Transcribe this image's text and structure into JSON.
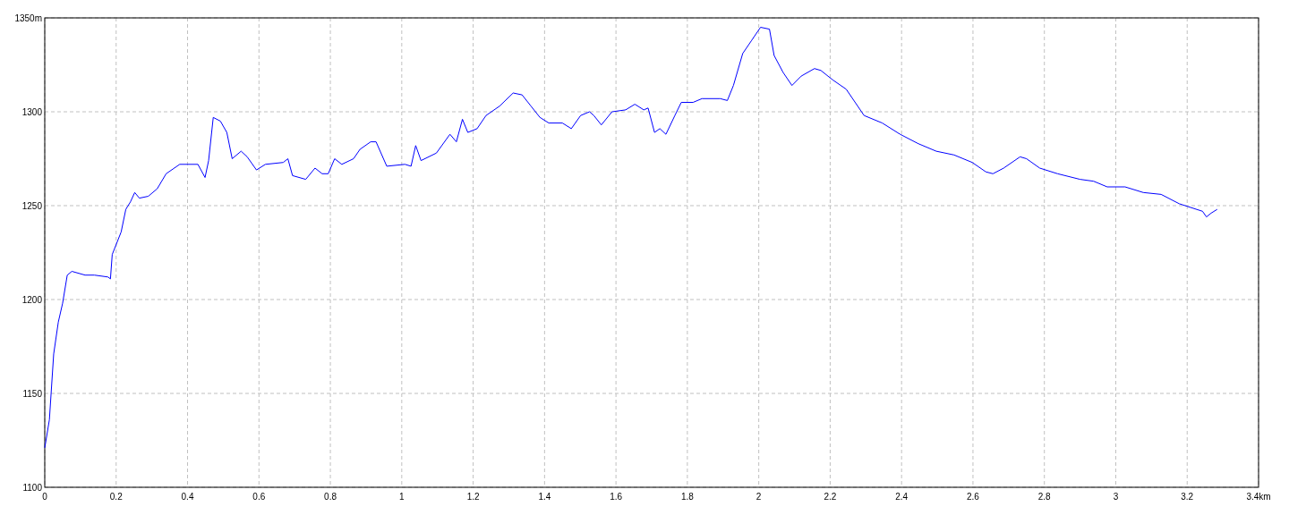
{
  "chart_data": {
    "type": "line",
    "x": [
      0,
      0.013,
      0.025,
      0.038,
      0.05,
      0.063,
      0.076,
      0.113,
      0.139,
      0.177,
      0.184,
      0.189,
      0.214,
      0.227,
      0.24,
      0.252,
      0.265,
      0.29,
      0.315,
      0.34,
      0.378,
      0.429,
      0.449,
      0.459,
      0.472,
      0.492,
      0.51,
      0.525,
      0.55,
      0.567,
      0.593,
      0.618,
      0.668,
      0.681,
      0.694,
      0.731,
      0.757,
      0.777,
      0.794,
      0.812,
      0.832,
      0.865,
      0.883,
      0.913,
      0.928,
      0.958,
      1.009,
      1.026,
      1.039,
      1.054,
      1.097,
      1.135,
      1.153,
      1.17,
      1.185,
      1.211,
      1.236,
      1.274,
      1.312,
      1.337,
      1.362,
      1.387,
      1.412,
      1.45,
      1.475,
      1.501,
      1.526,
      1.538,
      1.559,
      1.589,
      1.627,
      1.653,
      1.678,
      1.69,
      1.708,
      1.723,
      1.74,
      1.765,
      1.783,
      1.816,
      1.841,
      1.892,
      1.912,
      1.929,
      1.955,
      1.98,
      2.005,
      2.03,
      2.043,
      2.068,
      2.093,
      2.119,
      2.156,
      2.174,
      2.207,
      2.245,
      2.295,
      2.346,
      2.396,
      2.447,
      2.497,
      2.547,
      2.598,
      2.636,
      2.656,
      2.686,
      2.732,
      2.75,
      2.787,
      2.837,
      2.9,
      2.938,
      2.976,
      3.026,
      3.077,
      3.127,
      3.178,
      3.243,
      3.254,
      3.267,
      3.284
    ],
    "series": [
      {
        "color": "#0000ff",
        "values": [
          1121,
          1136,
          1171,
          1188,
          1198,
          1213,
          1215,
          1213,
          1213,
          1212,
          1211,
          1224,
          1236,
          1248,
          1252,
          1257,
          1254,
          1255,
          1259,
          1267,
          1272,
          1272,
          1265,
          1274,
          1297,
          1295,
          1289,
          1275,
          1279,
          1276,
          1269,
          1272,
          1273,
          1275,
          1266,
          1264,
          1270,
          1267,
          1267,
          1275,
          1272,
          1275,
          1280,
          1284,
          1284,
          1271,
          1272,
          1271,
          1282,
          1274,
          1278,
          1288,
          1284,
          1296,
          1289,
          1291,
          1298,
          1303,
          1310,
          1309,
          1303,
          1297,
          1294,
          1294,
          1291,
          1298,
          1300,
          1298,
          1293,
          1300,
          1301,
          1304,
          1301,
          1302,
          1289,
          1291,
          1288,
          1298,
          1305,
          1305,
          1307,
          1307,
          1306,
          1314,
          1331,
          1338,
          1345,
          1344,
          1330,
          1321,
          1314,
          1319,
          1323,
          1322,
          1317,
          1312,
          1298,
          1294,
          1288,
          1283,
          1279,
          1277,
          1273,
          1268,
          1267,
          1270,
          1276,
          1275,
          1270,
          1267,
          1264,
          1263,
          1260,
          1260,
          1257,
          1256,
          1251,
          1247,
          1244,
          1246,
          1248
        ]
      }
    ],
    "xlim": [
      0,
      3.4
    ],
    "ylim": [
      1100,
      1350
    ],
    "xticks": [
      0,
      0.2,
      0.4,
      0.6,
      0.8,
      1,
      1.2,
      1.4,
      1.6,
      1.8,
      2,
      2.2,
      2.4,
      2.6,
      2.8,
      3,
      3.2,
      {
        "value": 3.4,
        "label": "3.4km"
      }
    ],
    "yticks": [
      1100,
      1150,
      1200,
      1250,
      1300,
      {
        "value": 1350,
        "label": "1350m"
      }
    ],
    "grid": true,
    "line_style": "solid"
  }
}
